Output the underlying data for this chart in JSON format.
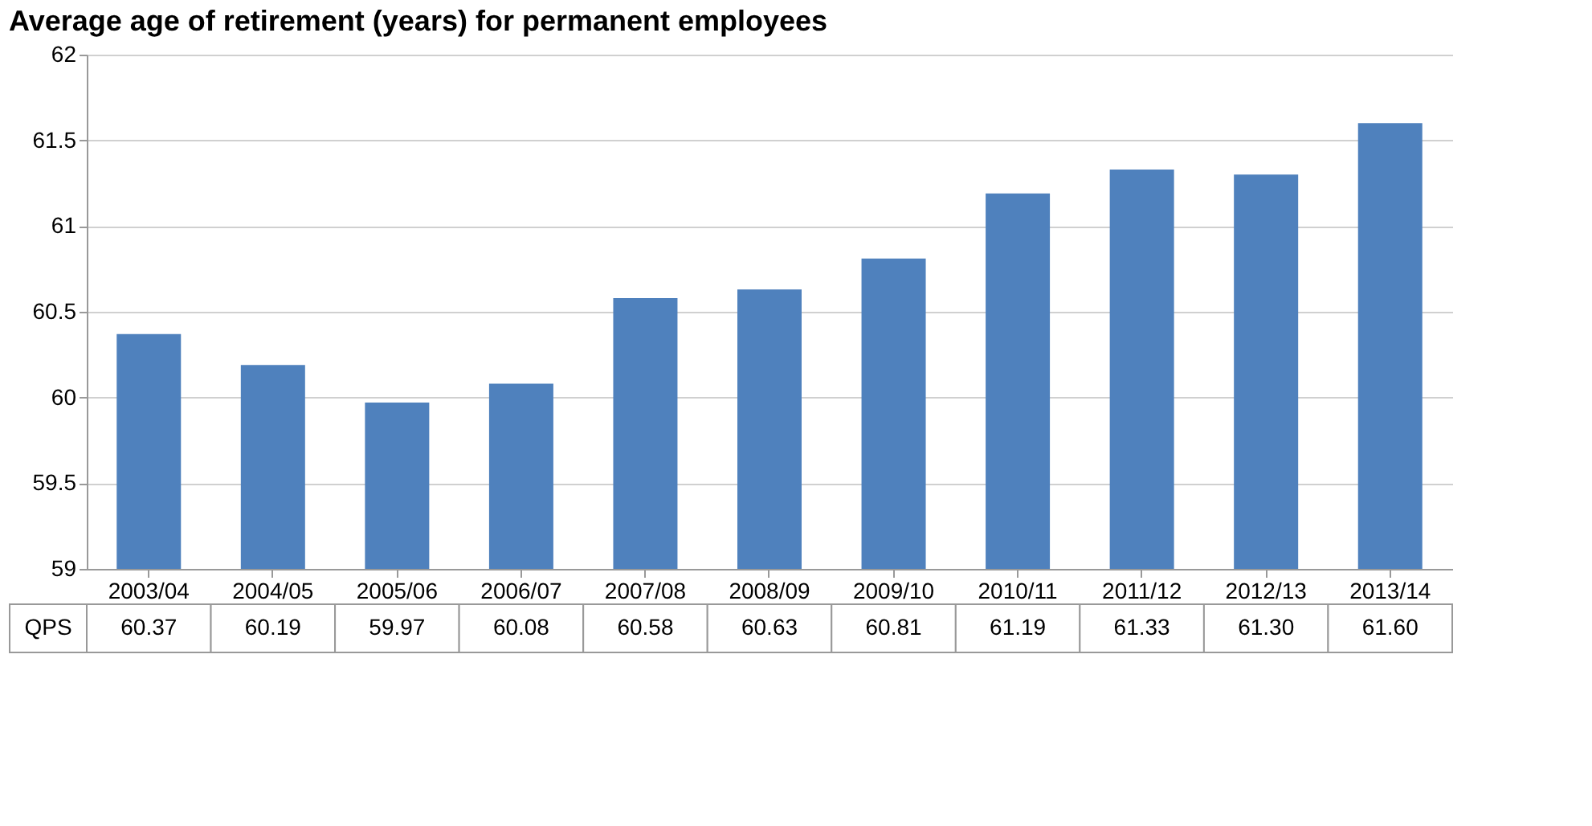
{
  "chart_data": {
    "type": "bar",
    "title": "Average age of retirement (years) for permanent employees",
    "categories": [
      "2003/04",
      "2004/05",
      "2005/06",
      "2006/07",
      "2007/08",
      "2008/09",
      "2009/10",
      "2010/11",
      "2011/12",
      "2012/13",
      "2013/14"
    ],
    "series": [
      {
        "name": "QPS",
        "color": "#4f81bd",
        "values": [
          60.37,
          60.19,
          59.97,
          60.08,
          60.58,
          60.63,
          60.81,
          61.19,
          61.33,
          61.3,
          61.6
        ],
        "value_labels": [
          "60.37",
          "60.19",
          "59.97",
          "60.08",
          "60.58",
          "60.63",
          "60.81",
          "61.19",
          "61.33",
          "61.30",
          "61.60"
        ]
      }
    ],
    "ylim": [
      59,
      62
    ],
    "yticks": [
      59,
      59.5,
      60,
      60.5,
      61,
      61.5,
      62
    ],
    "grid": "y"
  }
}
